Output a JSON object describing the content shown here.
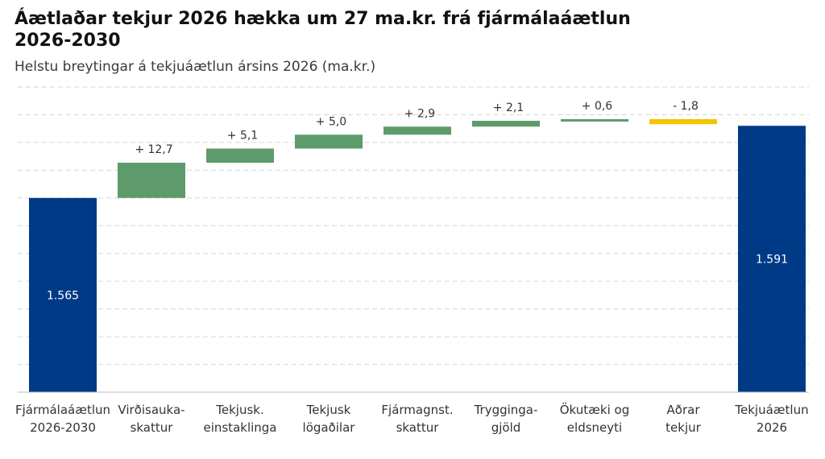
{
  "title": "Áætlaðar tekjur 2026 hækka um 27 ma.kr. frá fjármálaáætlun 2026-2030",
  "subtitle": "Helstu breytingar á tekjuáætlun ársins 2026 (ma.kr.)",
  "colors": {
    "total": "#003a87",
    "increase": "#5d9b6c",
    "decrease": "#f2c400",
    "grid": "#d6d6d6"
  },
  "chart_data": {
    "type": "waterfall",
    "title": "Áætlaðar tekjur 2026 hækka um 27 ma.kr. frá fjármálaáætlun 2026-2030",
    "subtitle": "Helstu breytingar á tekjuáætlun ársins 2026 (ma.kr.)",
    "ylim": [
      1495,
      1605
    ],
    "grid": true,
    "steps": [
      {
        "category": [
          "Fjármálaáætlun",
          "2026-2030"
        ],
        "kind": "total",
        "value": 1565,
        "label": "1.565"
      },
      {
        "category": [
          "Virðisauka-",
          "skattur"
        ],
        "kind": "delta",
        "value": 12.7,
        "label": "+ 12,7"
      },
      {
        "category": [
          "Tekjusk.",
          "einstaklinga"
        ],
        "kind": "delta",
        "value": 5.1,
        "label": "+ 5,1"
      },
      {
        "category": [
          "Tekjusk",
          "lögaðilar"
        ],
        "kind": "delta",
        "value": 5.0,
        "label": "+ 5,0"
      },
      {
        "category": [
          "Fjármagnst.",
          "skattur"
        ],
        "kind": "delta",
        "value": 2.9,
        "label": "+ 2,9"
      },
      {
        "category": [
          "Tryggingа-",
          "gjöld"
        ],
        "kind": "delta",
        "value": 2.1,
        "label": "+ 2,1"
      },
      {
        "category": [
          "Ökutæki og",
          "eldsneyti"
        ],
        "kind": "delta",
        "value": 0.6,
        "label": "+ 0,6"
      },
      {
        "category": [
          "Aðrar",
          "tekjur"
        ],
        "kind": "delta",
        "value": -1.8,
        "label": "- 1,8"
      },
      {
        "category": [
          "Tekjuáætlun",
          "2026"
        ],
        "kind": "total",
        "value": 1591,
        "label": "1.591"
      }
    ]
  }
}
